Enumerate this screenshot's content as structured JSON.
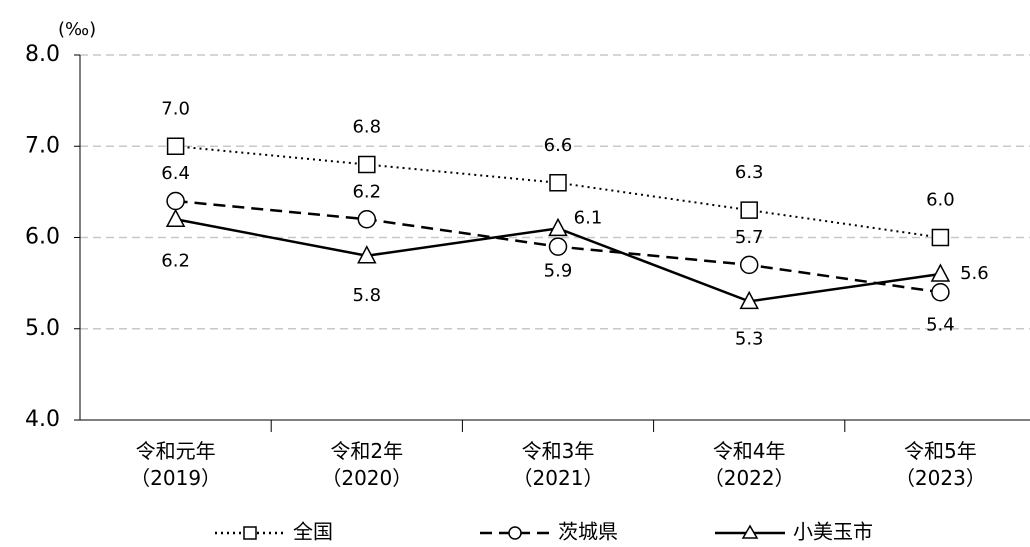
{
  "chart_data": {
    "type": "line",
    "y_axis_label": "(‰)",
    "categories": [
      "令和元年\n（2019）",
      "令和2年\n（2020）",
      "令和3年\n（2021）",
      "令和4年\n（2022）",
      "令和5年\n（2023）"
    ],
    "series": [
      {
        "name": "全国",
        "color": "#000000",
        "line_style": "dotted",
        "marker": "square",
        "values": [
          7.0,
          6.8,
          6.6,
          6.3,
          6.0
        ],
        "value_labels": [
          "7.0",
          "6.8",
          "6.6",
          "6.3",
          "6.0"
        ]
      },
      {
        "name": "茨城県",
        "color": "#000000",
        "line_style": "dashed",
        "marker": "circle",
        "values": [
          6.4,
          6.2,
          5.9,
          5.7,
          5.4
        ],
        "value_labels": [
          "6.4",
          "6.2",
          "5.9",
          "5.7",
          "5.4"
        ]
      },
      {
        "name": "小美玉市",
        "color": "#000000",
        "line_style": "solid",
        "marker": "triangle",
        "values": [
          6.2,
          5.8,
          6.1,
          5.3,
          5.6
        ],
        "value_labels": [
          "6.2",
          "5.8",
          "6.1",
          "5.3",
          "5.6"
        ]
      }
    ],
    "ylim": [
      4,
      8
    ],
    "yticks": [
      {
        "value": 4,
        "label": "4.0"
      },
      {
        "value": 5,
        "label": "5.0"
      },
      {
        "value": 6,
        "label": "6.0"
      },
      {
        "value": 7,
        "label": "7.0"
      },
      {
        "value": 8,
        "label": "8.0"
      }
    ],
    "grid": true,
    "legend": "bottom"
  }
}
